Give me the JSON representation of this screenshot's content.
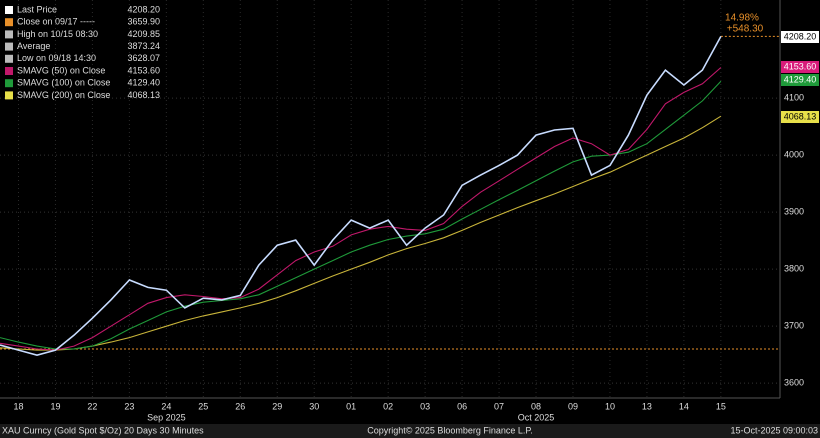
{
  "chart_data": {
    "type": "line",
    "x": [
      -0.5,
      0,
      0.5,
      1,
      1.5,
      2,
      2.5,
      3,
      3.5,
      4,
      4.5,
      5,
      5.5,
      6,
      6.5,
      7,
      7.5,
      8,
      8.5,
      9,
      9.5,
      10,
      10.5,
      11,
      11.5,
      12,
      12.5,
      13,
      13.5,
      14,
      14.5,
      15,
      15.5,
      16,
      16.5,
      17,
      17.5,
      18,
      18.5,
      19
    ],
    "series": [
      {
        "name": "Last Price",
        "color": "#c8dcff",
        "values": [
          3667,
          3658,
          3649,
          3658,
          3684,
          3714,
          3746,
          3781,
          3768,
          3763,
          3732,
          3749,
          3746,
          3754,
          3807,
          3842,
          3851,
          3807,
          3851,
          3886,
          3872,
          3886,
          3842,
          3872,
          3895,
          3947,
          3965,
          3982,
          4000,
          4035,
          4044,
          4047,
          3965,
          3982,
          4035,
          4105,
          4149,
          4123,
          4149,
          4208.2
        ]
      },
      {
        "name": "SMAVG (50)  on Close",
        "color": "#c0186a",
        "values": [
          3670,
          3665,
          3660,
          3658,
          3665,
          3680,
          3700,
          3720,
          3740,
          3750,
          3755,
          3752,
          3748,
          3750,
          3765,
          3790,
          3815,
          3830,
          3840,
          3860,
          3870,
          3875,
          3870,
          3868,
          3880,
          3910,
          3935,
          3955,
          3975,
          3995,
          4015,
          4030,
          4020,
          4000,
          4010,
          4045,
          4090,
          4110,
          4125,
          4153.6
        ]
      },
      {
        "name": "SMAVG (100)  on Close",
        "color": "#1f9a3a",
        "values": [
          3680,
          3672,
          3665,
          3660,
          3660,
          3665,
          3678,
          3695,
          3710,
          3725,
          3735,
          3742,
          3745,
          3748,
          3755,
          3770,
          3785,
          3800,
          3815,
          3830,
          3842,
          3852,
          3858,
          3862,
          3870,
          3888,
          3905,
          3922,
          3938,
          3955,
          3972,
          3988,
          3998,
          4000,
          4005,
          4020,
          4045,
          4070,
          4095,
          4129.4
        ]
      },
      {
        "name": "SMAVG (200)  on Close",
        "color": "#c8b43a",
        "values": [
          3662,
          3660,
          3658,
          3658,
          3660,
          3665,
          3672,
          3680,
          3690,
          3700,
          3710,
          3718,
          3725,
          3732,
          3740,
          3750,
          3762,
          3775,
          3788,
          3800,
          3812,
          3825,
          3836,
          3845,
          3855,
          3868,
          3882,
          3895,
          3908,
          3920,
          3932,
          3945,
          3958,
          3970,
          3985,
          4000,
          4015,
          4030,
          4048,
          4068.13
        ]
      }
    ],
    "xlim": [
      -0.5,
      20.6
    ],
    "xticks": [
      {
        "value": 0,
        "label": "18"
      },
      {
        "value": 1,
        "label": "19"
      },
      {
        "value": 2,
        "label": "22"
      },
      {
        "value": 3,
        "label": "23"
      },
      {
        "value": 4,
        "label": "24"
      },
      {
        "value": 5,
        "label": "25"
      },
      {
        "value": 6,
        "label": "26"
      },
      {
        "value": 7,
        "label": "29"
      },
      {
        "value": 8,
        "label": "30"
      },
      {
        "value": 9,
        "label": "01"
      },
      {
        "value": 10,
        "label": "02"
      },
      {
        "value": 11,
        "label": "03"
      },
      {
        "value": 12,
        "label": "06"
      },
      {
        "value": 13,
        "label": "07"
      },
      {
        "value": 14,
        "label": "08"
      },
      {
        "value": 15,
        "label": "09"
      },
      {
        "value": 16,
        "label": "10"
      },
      {
        "value": 17,
        "label": "13"
      },
      {
        "value": 18,
        "label": "14"
      },
      {
        "value": 19,
        "label": "15"
      }
    ],
    "month_labels": [
      {
        "value": 4,
        "label": "Sep 2025"
      },
      {
        "value": 14,
        "label": "Oct 2025"
      }
    ],
    "ylim": [
      3574,
      4272
    ],
    "yticks": [
      3600,
      3700,
      3800,
      3900,
      4000,
      4100
    ],
    "grid": true,
    "legend": {
      "names": [
        "Last Price",
        "Close on 09/17 -----",
        "High on 10/15 08:30",
        "Average",
        "Low on 09/18 14:30",
        "SMAVG (50)  on Close",
        "SMAVG (100)  on Close",
        "SMAVG (200)  on Close"
      ],
      "colors": [
        "#ffffff",
        "#e8902a",
        "#bbbbbb",
        "#bbbbbb",
        "#bbbbbb",
        "#c0186a",
        "#1f9a3a",
        "#e8e04a"
      ],
      "values": [
        4208.2,
        3659.9,
        4209.85,
        3873.24,
        3628.07,
        4153.6,
        4129.4,
        4068.13
      ],
      "value_labels": [
        "4208.20",
        "3659.90",
        "4209.85",
        "3873.24",
        "3628.07",
        "4153.60",
        "4129.40",
        "4068.13"
      ]
    },
    "annotations": [
      "14.98%",
      "+548.30"
    ],
    "footer": {
      "left": "XAU Curncy (Gold Spot  $/Oz) 20 Days 30 Minutes",
      "center": "Copyright© 2025 Bloomberg Finance L.P.",
      "right": "15-Oct-2025 09:00:03"
    }
  }
}
